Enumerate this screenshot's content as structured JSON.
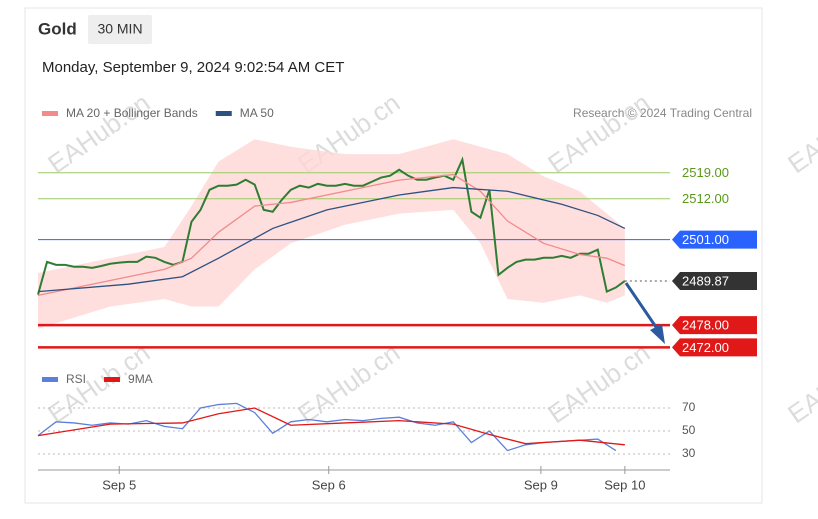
{
  "header": {
    "title": "Gold",
    "timeframe": "30 MIN",
    "timestamp": "Monday, September 9, 2024 9:02:54 AM CET",
    "credit": "Research © 2024 Trading Central",
    "watermark": "EAHub.cn"
  },
  "chart_data": [
    {
      "type": "line",
      "x": [
        0,
        1,
        2,
        3,
        4,
        5,
        6,
        7,
        8,
        9,
        10,
        11,
        12,
        13,
        14,
        15,
        16,
        17,
        18,
        19,
        20,
        21,
        22,
        23,
        24,
        25,
        26,
        27,
        28,
        29,
        30,
        31,
        32,
        33,
        34,
        35,
        36,
        37,
        38,
        39,
        40,
        41,
        42,
        43,
        44,
        45,
        46,
        47,
        48,
        49,
        50,
        51,
        52,
        53,
        54,
        55,
        56,
        57,
        58,
        59,
        60,
        61,
        62,
        63,
        64,
        65
      ],
      "xlim": [
        0,
        70
      ],
      "ylim": [
        2468.6,
        2527.8
      ],
      "series": [
        {
          "name": "Gold",
          "color": "#2e7d32",
          "values": [
            2486.2,
            2495,
            2494.2,
            2494.2,
            2493.7,
            2493.7,
            2493.4,
            2493.9,
            2494.5,
            2494.8,
            2495,
            2495,
            2496.4,
            2496.1,
            2495,
            2494.2,
            2495,
            2505.8,
            2509,
            2514.4,
            2515.5,
            2515.5,
            2515.8,
            2517.1,
            2515.8,
            2509,
            2508.5,
            2511.7,
            2514.4,
            2515.5,
            2515,
            2516,
            2515.5,
            2515.5,
            2516,
            2515.5,
            2515.5,
            2516.6,
            2517.7,
            2518.2,
            2519.8,
            2518.2,
            2517.1,
            2517.1,
            2517.7,
            2518.2,
            2517.1,
            2522.5,
            2508.5,
            2506.9,
            2514.4,
            2491.5,
            2493.4,
            2495,
            2495.6,
            2495.6,
            2496.1,
            2496.1,
            2496.6,
            2496.1,
            2497.2,
            2497.2,
            2498.3,
            2487,
            2488.1,
            2489.87
          ]
        },
        {
          "name": "MA 20 + Bollinger Bands",
          "color": "#f28b8b",
          "x": [
            0,
            8,
            14,
            17,
            20,
            24,
            28,
            34,
            40,
            46,
            49,
            52,
            56,
            60,
            63,
            65
          ],
          "values": [
            2486,
            2490,
            2493,
            2496,
            2503,
            2510,
            2511,
            2514,
            2517,
            2518.5,
            2514,
            2506,
            2500,
            2497,
            2496,
            2494
          ]
        },
        {
          "name": "MA 50",
          "color": "#2c5282",
          "x": [
            0,
            10,
            16,
            20,
            26,
            32,
            40,
            46,
            52,
            58,
            62,
            65
          ],
          "values": [
            2487,
            2489,
            2491,
            2496,
            2504,
            2509,
            2513,
            2515,
            2514,
            2510.5,
            2507.5,
            2504
          ]
        }
      ],
      "bands": {
        "color": "#ffd6d6",
        "x": [
          0,
          8,
          14,
          17,
          20,
          24,
          28,
          34,
          40,
          46,
          49,
          52,
          56,
          60,
          63,
          65
        ],
        "upper": [
          2492,
          2496,
          2499,
          2510,
          2522,
          2528,
          2526,
          2524,
          2524,
          2528,
          2526,
          2524,
          2518,
          2514,
          2508,
          2504
        ],
        "lower": [
          2477,
          2483,
          2485,
          2483,
          2483,
          2493,
          2500,
          2505,
          2508,
          2509,
          2500,
          2485,
          2484,
          2486,
          2484,
          2486
        ]
      },
      "levels": [
        {
          "value": 2519,
          "label": "2519.00",
          "color": "#9ccc65",
          "boxed": false
        },
        {
          "value": 2512,
          "label": "2512.00",
          "color": "#9ccc65",
          "boxed": false
        },
        {
          "value": 2501,
          "label": "2501.00",
          "color": "#2962ff",
          "boxed": true
        },
        {
          "value": 2489.87,
          "label": "2489.87",
          "color": "#333333",
          "boxed": true,
          "dash": true
        },
        {
          "value": 2478,
          "label": "2478.00",
          "color": "#e01818",
          "boxed": true
        },
        {
          "value": 2472,
          "label": "2472.00",
          "color": "#e01818",
          "boxed": true
        }
      ]
    },
    {
      "type": "line",
      "xlim": [
        0,
        70
      ],
      "ylim": [
        24.8,
        81.3
      ],
      "yticks": [
        70,
        50,
        30
      ],
      "xticks": [
        {
          "value": 9,
          "label": "Sep 5"
        },
        {
          "value": 32.2,
          "label": "Sep 6"
        },
        {
          "value": 55.7,
          "label": "Sep 9"
        },
        {
          "value": 65,
          "label": "Sep 10"
        }
      ],
      "series": [
        {
          "name": "RSI",
          "color": "#5b7fdb",
          "x": [
            0,
            2,
            4,
            6,
            8,
            10,
            12,
            14,
            16,
            18,
            20,
            22,
            24,
            26,
            28,
            30,
            32,
            34,
            36,
            38,
            40,
            42,
            44,
            46,
            48,
            50,
            52,
            54,
            56,
            58,
            60,
            62,
            64
          ],
          "values": [
            46,
            58,
            57,
            55,
            57,
            56,
            59,
            54,
            52,
            70,
            73,
            74,
            66,
            48,
            58,
            60,
            58,
            60,
            59,
            61,
            62,
            57,
            55,
            58,
            40,
            50,
            33,
            38,
            40,
            41,
            42,
            43,
            33
          ]
        },
        {
          "name": "9MA",
          "color": "#e01818",
          "x": [
            0,
            8,
            16,
            20,
            24,
            28,
            34,
            40,
            46,
            50,
            54,
            60,
            65
          ],
          "values": [
            46,
            56,
            57,
            65,
            70,
            55,
            57,
            59,
            56,
            47,
            39,
            42,
            38
          ]
        }
      ]
    }
  ]
}
